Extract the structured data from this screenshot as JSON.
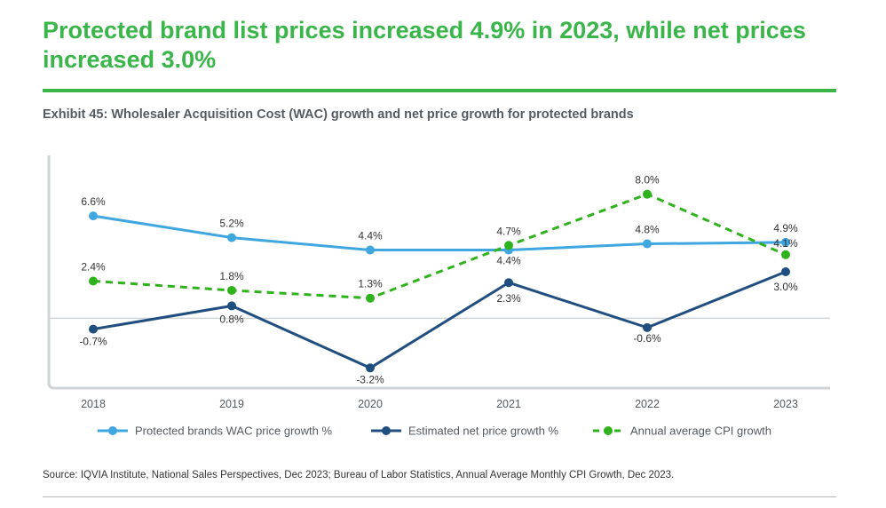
{
  "headline": "Protected brand list prices increased 4.9% in 2023, while net prices increased 3.0%",
  "exhibit_title": "Exhibit 45: Wholesaler Acquisition Cost (WAC) growth and net price growth for protected brands",
  "source": "Source: IQVIA Institute, National Sales Perspectives, Dec 2023; Bureau of Labor Statistics, Annual Average Monthly CPI Growth, Dec 2023.",
  "colors": {
    "headline": "#3ab54a",
    "wac": "#3fa6e0",
    "net": "#1f4e7f",
    "cpi": "#2fb31c",
    "axis": "#cfd3d6",
    "label": "#555b61"
  },
  "chart_data": {
    "type": "line",
    "categories": [
      "2018",
      "2019",
      "2020",
      "2021",
      "2022",
      "2023"
    ],
    "ylim": [
      -4.5,
      10.5
    ],
    "series": [
      {
        "name": "Protected brands WAC price growth %",
        "values": [
          6.6,
          5.2,
          4.4,
          4.4,
          4.8,
          4.9
        ],
        "labels": [
          "6.6%",
          "5.2%",
          "4.4%",
          "4.4%",
          "4.8%",
          "4.9%"
        ],
        "style": "solid",
        "color": "#3fa6e0"
      },
      {
        "name": "Estimated net price growth %",
        "values": [
          -0.7,
          0.8,
          -3.2,
          2.3,
          -0.6,
          3.0
        ],
        "labels": [
          "-0.7%",
          "0.8%",
          "-3.2%",
          "2.3%",
          "-0.6%",
          "3.0%"
        ],
        "style": "solid",
        "color": "#1f4e7f"
      },
      {
        "name": "Annual average CPI growth",
        "values": [
          2.4,
          1.8,
          1.3,
          4.7,
          8.0,
          4.1
        ],
        "labels": [
          "2.4%",
          "1.8%",
          "1.3%",
          "4.7%",
          "8.0%",
          "4.1%"
        ],
        "style": "dashed",
        "color": "#2fb31c"
      }
    ],
    "legend_position": "bottom",
    "grid": false
  }
}
